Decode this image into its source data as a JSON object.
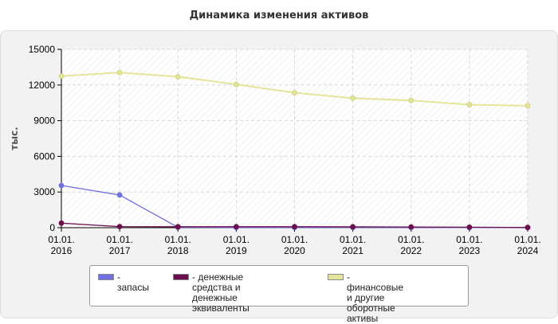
{
  "chart_data": {
    "type": "line",
    "title": "Динамика изменения активов",
    "ylabel": "тыс.",
    "xlabel": "",
    "ylim": [
      0,
      15000
    ],
    "yticks": [
      "0",
      "3000",
      "6000",
      "9000",
      "12000",
      "15000"
    ],
    "yticks_values": [
      0,
      3000,
      6000,
      9000,
      12000,
      15000
    ],
    "categories": [
      "01.01.\n2016",
      "01.01.\n2017",
      "01.01.\n2018",
      "01.01.\n2019",
      "01.01.\n2020",
      "01.01.\n2021",
      "01.01.\n2022",
      "01.01.\n2023",
      "01.01.\n2024"
    ],
    "series": [
      {
        "name": "- финансовые и другие\nоборотные активы",
        "color": "#e4e49a",
        "values": [
          12750,
          13050,
          12700,
          12050,
          11350,
          10900,
          10700,
          10350,
          10250
        ]
      },
      {
        "name": "- запасы",
        "color": "#7070e0",
        "values": [
          3550,
          2750,
          30,
          20,
          20,
          20,
          20,
          10,
          5
        ]
      },
      {
        "name": "- денежные средства и\nденежные эквиваленты",
        "color": "#6b0f4f",
        "values": [
          380,
          90,
          80,
          80,
          80,
          70,
          60,
          40,
          20
        ]
      }
    ],
    "legend_position": "bottom",
    "grid": true
  }
}
